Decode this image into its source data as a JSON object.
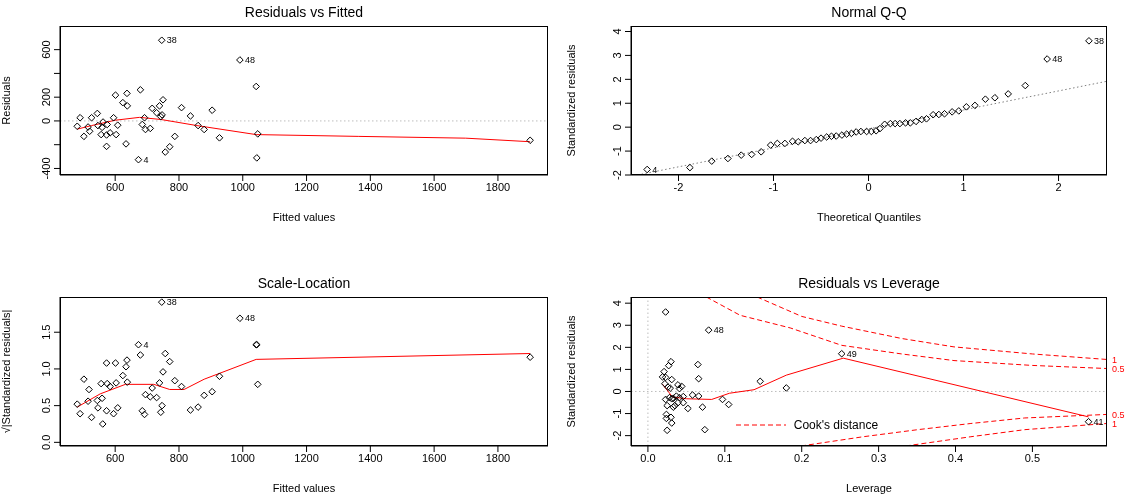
{
  "chart_data": [
    {
      "type": "scatter",
      "title": "Residuals vs Fitted",
      "xlabel": "Fitted values",
      "ylabel": "Residuals",
      "xlim": [
        427,
        1957
      ],
      "ylim": [
        -455,
        799
      ],
      "xticks": [
        600,
        800,
        1000,
        1200,
        1400,
        1600,
        1800
      ],
      "yticks": [
        -400,
        {
          "value": -200,
          "label": null
        },
        0,
        200,
        {
          "value": 400,
          "label": null
        },
        600
      ],
      "series": [
        {
          "marker": "diamond",
          "color": "#000000",
          "x": [
            481,
            490,
            502,
            515,
            520,
            526,
            544,
            546,
            556,
            559,
            562,
            573,
            573,
            575,
            584,
            595,
            601,
            603,
            608,
            624,
            634,
            637,
            638,
            673,
            679,
            685,
            692,
            695,
            710,
            716,
            730,
            739,
            743,
            746,
            747,
            750,
            757,
            771,
            787,
            808,
            836,
            860,
            879,
            904,
            927,
            991,
            1042,
            1047,
            1044,
            1901
          ],
          "values": [
            -45,
            27,
            -130,
            -51,
            -87,
            27,
            63,
            -39,
            -115,
            -54,
            -9,
            -214,
            -118,
            -30,
            -100,
            27,
            217,
            -115,
            -36,
            154,
            -193,
            232,
            127,
            -326,
            262,
            -30,
            27,
            -72,
            -63,
            106,
            69,
            127,
            36,
            679,
            51,
            178,
            -262,
            -217,
            -130,
            112,
            42,
            -39,
            -72,
            90,
            -142,
            513,
            290,
            -109,
            -311,
            -163
          ]
        },
        {
          "type": "line",
          "marker": "none",
          "color": "#ff0000",
          "x": [
            481,
            526,
            600,
            676,
            744,
            856,
            1042,
            1362,
            1699,
            1901
          ],
          "values": [
            -69,
            -39,
            6,
            30,
            12,
            -39,
            -115,
            -130,
            -145,
            -175
          ]
        }
      ],
      "ref_lines": [
        {
          "axis": "y",
          "value": 0,
          "color": "#bebebe",
          "line_style": "dotted"
        }
      ],
      "annotations": [
        {
          "text": "38",
          "x": 746,
          "y": 679
        },
        {
          "text": "48",
          "x": 991,
          "y": 513
        },
        {
          "text": "4",
          "x": 673,
          "y": -326
        }
      ]
    },
    {
      "type": "scatter",
      "title": "Normal Q-Q",
      "xlabel": "Theoretical Quantiles",
      "ylabel": "Standardized residuals",
      "xlim": [
        -2.5,
        2.51
      ],
      "ylim": [
        -2,
        4.23
      ],
      "xticks": [
        -2,
        -1,
        0,
        1,
        2
      ],
      "yticks": [
        -2,
        -1,
        0,
        1,
        2,
        3,
        4
      ],
      "series": [
        {
          "marker": "diamond",
          "color": "#000000",
          "x": [
            -2.33,
            -1.88,
            -1.65,
            -1.48,
            -1.34,
            -1.23,
            -1.13,
            -1.03,
            -0.96,
            -0.88,
            -0.8,
            -0.74,
            -0.67,
            -0.61,
            -0.55,
            -0.5,
            -0.44,
            -0.39,
            -0.34,
            -0.28,
            -0.23,
            -0.18,
            -0.13,
            -0.08,
            -0.02,
            0.03,
            0.08,
            0.12,
            0.17,
            0.23,
            0.28,
            0.33,
            0.39,
            0.44,
            0.5,
            0.56,
            0.61,
            0.68,
            0.74,
            0.8,
            0.88,
            0.95,
            1.03,
            1.12,
            1.23,
            1.33,
            1.47,
            1.65,
            1.88,
            2.32
          ],
          "values": [
            -1.77,
            -1.69,
            -1.42,
            -1.31,
            -1.17,
            -1.14,
            -1.03,
            -0.75,
            -0.68,
            -0.68,
            -0.59,
            -0.61,
            -0.56,
            -0.56,
            -0.52,
            -0.46,
            -0.41,
            -0.38,
            -0.37,
            -0.33,
            -0.29,
            -0.26,
            -0.2,
            -0.18,
            -0.18,
            -0.18,
            -0.15,
            -0.06,
            0.12,
            0.15,
            0.15,
            0.15,
            0.18,
            0.18,
            0.24,
            0.32,
            0.35,
            0.52,
            0.53,
            0.56,
            0.64,
            0.68,
            0.85,
            0.91,
            1.17,
            1.23,
            1.39,
            1.74,
            2.85,
            3.61
          ]
        },
        {
          "type": "line",
          "marker": "none",
          "color": "#808080",
          "line_style": "dotted",
          "x": [
            -2.43,
            2.51
          ],
          "values": [
            -2,
            1.92
          ]
        }
      ],
      "annotations": [
        {
          "text": "38",
          "x": 2.32,
          "y": 3.61
        },
        {
          "text": "48",
          "x": 1.88,
          "y": 2.85
        },
        {
          "text": "4",
          "x": -2.33,
          "y": -1.77
        }
      ]
    },
    {
      "type": "scatter",
      "title": "Scale-Location",
      "xlabel": "Fitted values",
      "ylabel": "√|Standardized residuals|",
      "xlim": [
        427,
        1957
      ],
      "ylim": [
        -0.05,
        1.98
      ],
      "xticks": [
        600,
        800,
        1000,
        1200,
        1400,
        1600,
        1800
      ],
      "yticks": [
        {
          "value": 0,
          "label": "0.0"
        },
        0.5,
        {
          "value": 1,
          "label": "1.0"
        },
        1.5
      ],
      "series": [
        {
          "marker": "diamond",
          "color": "#000000",
          "x": [
            481,
            490,
            502,
            518,
            515,
            526,
            544,
            546,
            556,
            559,
            561,
            573,
            573,
            575,
            584,
            595,
            601,
            603,
            608,
            624,
            634,
            637,
            638,
            673,
            679,
            685,
            692,
            695,
            710,
            716,
            730,
            739,
            743,
            746,
            747,
            750,
            757,
            771,
            787,
            808,
            836,
            860,
            879,
            904,
            927,
            991,
            1042,
            1044,
            1047,
            1901
          ],
          "values": [
            0.52,
            0.39,
            0.86,
            0.72,
            0.56,
            0.34,
            0.57,
            0.47,
            0.8,
            0.6,
            0.25,
            1.08,
            0.43,
            0.8,
            0.76,
            0.39,
            1.08,
            0.81,
            0.47,
            0.91,
            1.03,
            1.12,
            0.82,
            1.33,
            1.19,
            0.43,
            0.38,
            0.65,
            0.62,
            0.74,
            0.61,
            0.81,
            0.41,
            1.91,
            0.5,
            0.96,
            1.21,
            1.1,
            0.84,
            0.76,
            0.44,
            0.48,
            0.64,
            0.69,
            0.9,
            1.69,
            1.33,
            1.33,
            0.79,
            1.16
          ]
        },
        {
          "type": "line",
          "marker": "none",
          "color": "#ff0000",
          "x": [
            481,
            553,
            632,
            721,
            771,
            816,
            879,
            1042,
            1901
          ],
          "values": [
            0.48,
            0.66,
            0.79,
            0.79,
            0.72,
            0.72,
            0.86,
            1.13,
            1.21
          ]
        }
      ],
      "annotations": [
        {
          "text": "38",
          "x": 746,
          "y": 1.91
        },
        {
          "text": "48",
          "x": 991,
          "y": 1.69
        },
        {
          "text": "4",
          "x": 673,
          "y": 1.33
        }
      ]
    },
    {
      "type": "scatter",
      "title": "Residuals vs Leverage",
      "xlabel": "Leverage",
      "ylabel": "Standardized residuals",
      "legend": "bottom left",
      "xlim": [
        -0.022,
        0.597
      ],
      "ylim": [
        -2.47,
        4.28
      ],
      "xticks": [
        {
          "value": 0,
          "label": "0.0"
        },
        0.1,
        0.2,
        0.3,
        0.4,
        0.5
      ],
      "yticks": [
        -2,
        -1,
        0,
        1,
        2,
        3,
        4
      ],
      "series": [
        {
          "marker": "diamond",
          "color": "#000000",
          "x": [
            0.023,
            0.079,
            0.252,
            0.573,
            0.18,
            0.146,
            0.097,
            0.105,
            0.074,
            0.071,
            0.065,
            0.066,
            0.066,
            0.058,
            0.052,
            0.046,
            0.044,
            0.046,
            0.039,
            0.041,
            0.039,
            0.035,
            0.033,
            0.03,
            0.027,
            0.031,
            0.029,
            0.028,
            0.031,
            0.033,
            0.03,
            0.031,
            0.024,
            0.024,
            0.025,
            0.025,
            0.023,
            0.021,
            0.019,
            0.023,
            0.022,
            0.026,
            0.037,
            0.041
          ],
          "values": [
            3.6,
            2.78,
            1.71,
            -1.37,
            0.16,
            0.46,
            -0.36,
            -0.59,
            -1.73,
            -0.71,
            1.22,
            0.58,
            -0.21,
            -0.16,
            -0.77,
            -0.23,
            0.23,
            -0.51,
            0.3,
            0.13,
            -0.51,
            -0.64,
            -0.31,
            1.35,
            1.17,
            0.54,
            0.15,
            -0.28,
            -0.33,
            -0.71,
            -1.17,
            -1.43,
            -1.04,
            -1.22,
            -1.76,
            -0.64,
            -0.36,
            0.9,
            0.66,
            0.64,
            0.35,
            0.2,
            -0.21,
            -0.28
          ]
        },
        {
          "type": "line",
          "marker": "none",
          "color": "#ff0000",
          "x": [
            0.019,
            0.032,
            0.05,
            0.083,
            0.106,
            0.138,
            0.18,
            0.254,
            0.573
          ],
          "values": [
            0.33,
            -0.25,
            -0.33,
            -0.36,
            -0.08,
            0.08,
            0.74,
            1.51,
            -1.15
          ]
        },
        {
          "type": "line",
          "name": "Cook's distance",
          "marker": "none",
          "color": "#ff0000",
          "line_style": "dashed",
          "x": [
            0.076,
            0.12,
            0.185,
            0.252,
            0.33,
            0.398,
            0.5,
            0.597
          ],
          "values": [
            4.28,
            3.45,
            2.88,
            2.09,
            1.7,
            1.4,
            1.18,
            1.04
          ]
        },
        {
          "type": "line",
          "marker": "none",
          "color": "#ff0000",
          "line_style": "dashed",
          "x": [
            0.142,
            0.2,
            0.252,
            0.33,
            0.398,
            0.5,
            0.597
          ],
          "values": [
            4.28,
            3.4,
            2.96,
            2.4,
            2.02,
            1.7,
            1.45
          ]
        },
        {
          "type": "line",
          "marker": "none",
          "color": "#ff0000",
          "line_style": "dashed",
          "x": [
            0.199,
            0.28,
            0.351,
            0.42,
            0.49,
            0.597
          ],
          "values": [
            -2.47,
            -2.05,
            -1.73,
            -1.45,
            -1.2,
            -1.04
          ]
        },
        {
          "type": "line",
          "marker": "none",
          "color": "#ff0000",
          "line_style": "dashed",
          "x": [
            0.335,
            0.42,
            0.49,
            0.597
          ],
          "values": [
            -2.47,
            -2.05,
            -1.73,
            -1.45
          ]
        }
      ],
      "ref_lines": [
        {
          "axis": "y",
          "value": 0,
          "color": "#bebebe",
          "line_style": "dotted"
        },
        {
          "axis": "x",
          "value": 0,
          "color": "#bebebe",
          "line_style": "dotted"
        }
      ],
      "annotations": [
        {
          "text": "48",
          "x": 0.079,
          "y": 2.78
        },
        {
          "text": "49",
          "x": 0.252,
          "y": 1.71
        },
        {
          "text": "41",
          "x": 0.573,
          "y": -1.37
        },
        {
          "text": "1",
          "x": 0.597,
          "y": 1.45
        },
        {
          "text": "0.5",
          "x": 0.597,
          "y": 1.04
        },
        {
          "text": "0.5",
          "x": 0.597,
          "y": -1.04
        },
        {
          "text": "1",
          "x": 0.597,
          "y": -1.45
        }
      ]
    }
  ]
}
